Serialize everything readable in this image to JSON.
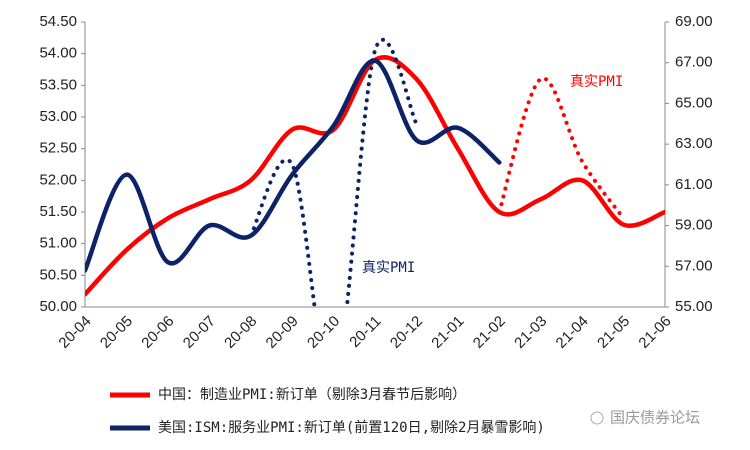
{
  "chart_data": {
    "type": "line",
    "categories": [
      "20-04",
      "20-05",
      "20-06",
      "20-07",
      "20-08",
      "20-09",
      "20-10",
      "20-11",
      "20-12",
      "21-01",
      "21-02",
      "21-03",
      "21-04",
      "21-05",
      "21-06"
    ],
    "ylim": [
      50,
      54.5
    ],
    "yticks": [
      {
        "value": 50,
        "label": "50.00"
      },
      {
        "value": 50.5,
        "label": "50.50"
      },
      {
        "value": 51,
        "label": "51.00"
      },
      {
        "value": 51.5,
        "label": "51.50"
      },
      {
        "value": 52,
        "label": "52.00"
      },
      {
        "value": 52.5,
        "label": "52.50"
      },
      {
        "value": 53,
        "label": "53.00"
      },
      {
        "value": 53.5,
        "label": "53.50"
      },
      {
        "value": 54,
        "label": "54.00"
      },
      {
        "value": 54.5,
        "label": "54.50"
      }
    ],
    "y2lim": [
      55,
      69
    ],
    "y2ticks": [
      {
        "value": 55,
        "label": "55.00"
      },
      {
        "value": 57,
        "label": "57.00"
      },
      {
        "value": 59,
        "label": "59.00"
      },
      {
        "value": 61,
        "label": "61.00"
      },
      {
        "value": 63,
        "label": "63.00"
      },
      {
        "value": 65,
        "label": "65.00"
      },
      {
        "value": 67,
        "label": "67.00"
      },
      {
        "value": 69,
        "label": "69.00"
      }
    ],
    "series": [
      {
        "name": "中国：制造业PMI:新订单（剔除3月春节后影响）",
        "color": "#ff0000",
        "style": "solid",
        "values": [
          50.2,
          50.9,
          51.4,
          51.7,
          52.0,
          52.8,
          52.8,
          53.9,
          53.6,
          52.5,
          51.5,
          51.7,
          52.0,
          51.3,
          51.5
        ]
      },
      {
        "name": "美国:ISM:服务业PMI:新订单(前置120日,剔除2月暴雪影响)",
        "color": "#0d2366",
        "style": "solid",
        "axis": "y2",
        "values": [
          56.8,
          61.5,
          57.2,
          59.0,
          58.5,
          61.5,
          63.9,
          67.1,
          63.2,
          63.8,
          62.1,
          null,
          null,
          null,
          null
        ]
      },
      {
        "name": "真实PMI",
        "color": "#ff0000",
        "style": "dotted",
        "values": [
          null,
          null,
          null,
          null,
          null,
          null,
          null,
          null,
          null,
          null,
          51.5,
          53.6,
          52.3,
          51.4,
          null
        ]
      },
      {
        "name": "真实PMI",
        "color": "#0d2366",
        "style": "dotted",
        "axis": "y2",
        "values": [
          null,
          null,
          null,
          null,
          58.5,
          62.0,
          51.0,
          67.6,
          64.0,
          null,
          null,
          null,
          null,
          null,
          null
        ]
      }
    ]
  },
  "watermark": "国庆债券论坛"
}
